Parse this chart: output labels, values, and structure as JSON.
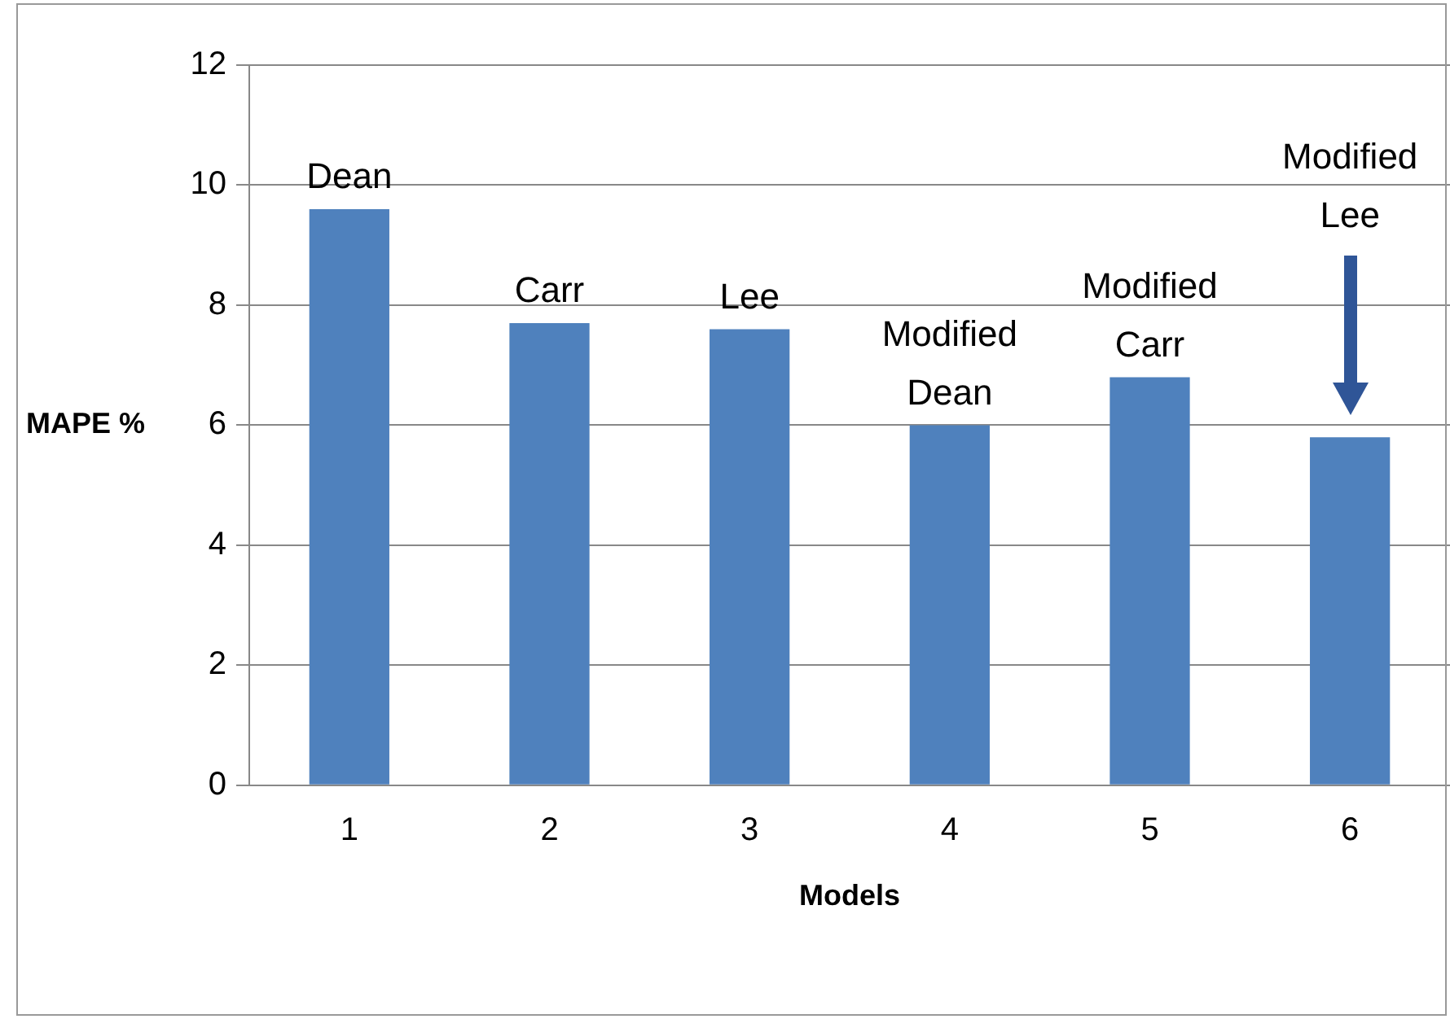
{
  "chart_data": {
    "type": "bar",
    "xlabel": "Models",
    "ylabel": "MAPE %",
    "categories": [
      "1",
      "2",
      "3",
      "4",
      "5",
      "6"
    ],
    "values": [
      9.6,
      7.7,
      7.6,
      6.0,
      6.8,
      5.8
    ],
    "color": "#4f81bd",
    "ylim": [
      0,
      12
    ],
    "yticks": [
      0,
      2,
      4,
      6,
      8,
      10,
      12
    ],
    "grid": "y",
    "annotations": [
      "Dean",
      "Carr",
      "Lee",
      "Modified Dean",
      "Modified Carr",
      "Modified Lee"
    ]
  }
}
